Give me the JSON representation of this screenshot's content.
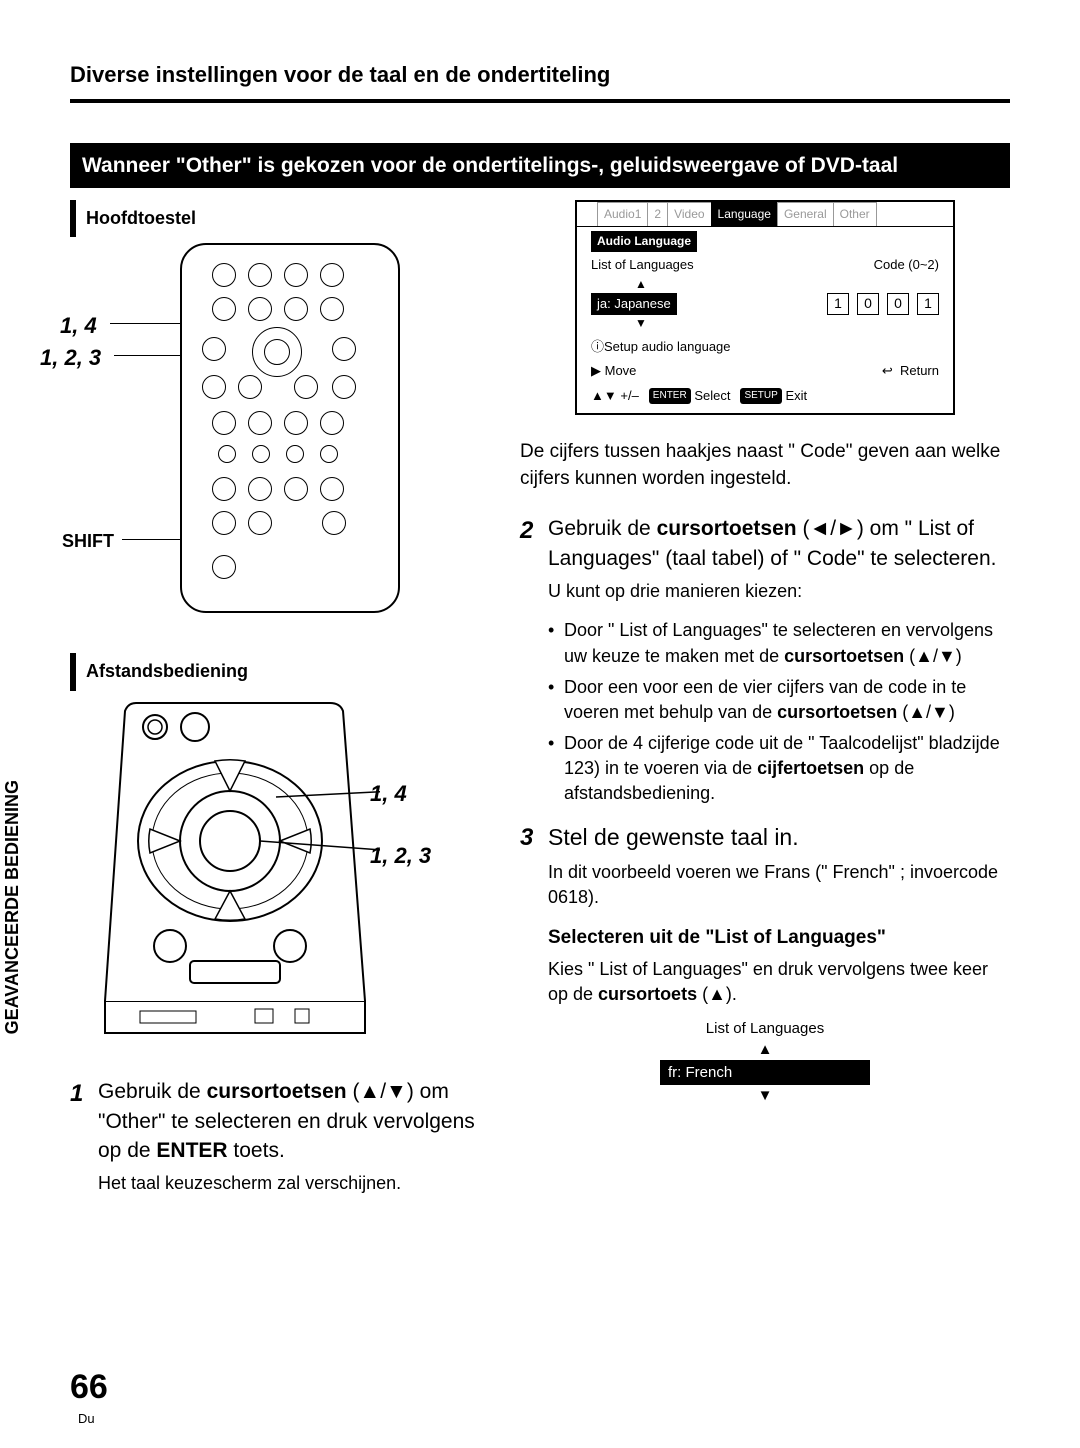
{
  "header": {
    "title": "Diverse instellingen voor de taal en de ondertiteling"
  },
  "banner": "Wanneer \"Other\" is gekozen voor de ondertitelings-, geluidsweergave of DVD-taal",
  "left": {
    "hoofdtoestel": "Hoofdtoestel",
    "afstandsbediening": "Afstandsbediening",
    "ref_14": "1, 4",
    "ref_123": "1, 2, 3",
    "shift": "SHIFT"
  },
  "side_text": "GEAVANCEERDE BEDIENING",
  "osd": {
    "tabs": [
      "Audio1",
      "2",
      "Video",
      "Language",
      "General",
      "Other"
    ],
    "active_tab_index": 3,
    "audio_language": "Audio Language",
    "list_of_languages": "List of Languages",
    "code_label": "Code (0~2)",
    "selected": "ja: Japanese",
    "code": [
      "1",
      "0",
      "0",
      "1"
    ],
    "info": "Setup audio language",
    "move": "Move",
    "plusminus": "+/–",
    "enter": "ENTER",
    "select": "Select",
    "setup": "SETUP",
    "exit": "Exit",
    "return": "Return"
  },
  "right": {
    "para1": "De cijfers tussen haakjes naast \" Code\" geven aan welke cijfers kunnen worden ingesteld.",
    "step2_a": "Gebruik de ",
    "step2_b": "cursortoetsen",
    "step2_c": " (◄/►) om \" List of Languages\" (taal tabel) of \" Code\" te selecteren.",
    "step2_note": "U kunt op drie manieren kiezen:",
    "bullets": [
      "Door \" List of Languages\" te selecteren en vervolgens uw keuze te maken met de <b>cursortoetsen</b> (▲/▼)",
      "Door een voor een de vier cijfers van de code in te voeren met behulp van de <b>cursortoetsen</b> (▲/▼)",
      "Door de 4 cijferige code uit de \" Taalcodelijst\" bladzijde 123) in te voeren via de <b>cijfertoetsen</b> op de afstandsbediening."
    ],
    "step3": "Stel de gewenste taal in.",
    "step3_note": "In dit voorbeeld voeren we Frans (\" French\" ; invoercode 0618).",
    "subhead": "Selecteren uit de \"List of Languages\"",
    "sub_note_a": "Kies \" List of Languages\" en druk vervolgens twee keer op de ",
    "sub_note_b": "cursortoets",
    "sub_note_c": " (▲).",
    "mini_title": "List of Languages",
    "mini_sel": "fr: French"
  },
  "leftcol": {
    "step1_a": "Gebruik de ",
    "step1_b": "cursortoetsen",
    "step1_c": " (▲/▼) om \"Other\" te selecteren en druk vervolgens op de ",
    "step1_d": "ENTER",
    "step1_e": " toets.",
    "step1_note": "Het taal keuzescherm zal verschijnen."
  },
  "page": {
    "num": "66",
    "lang": "Du"
  },
  "colors": {
    "fg": "#000000",
    "bg": "#ffffff"
  }
}
